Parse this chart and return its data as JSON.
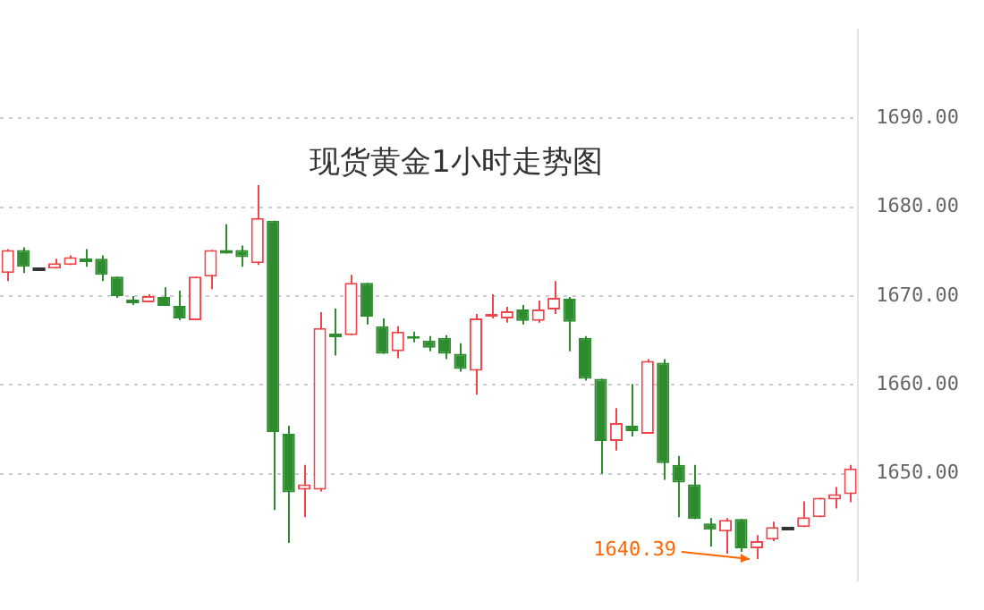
{
  "chart_data": {
    "type": "candlestick",
    "title": "现货黄金1小时走势图",
    "categories": [
      null,
      null,
      null,
      null,
      null,
      null,
      null,
      null,
      null,
      null,
      null,
      null,
      null,
      null,
      null,
      null,
      null,
      null,
      null,
      null,
      null,
      null,
      null,
      null,
      null,
      null,
      null,
      null,
      null,
      null,
      null,
      null,
      null,
      null,
      null,
      null,
      null,
      null,
      null,
      null,
      null,
      null,
      null,
      null,
      null,
      null,
      null,
      null,
      null,
      null,
      null,
      null,
      null,
      null,
      null
    ],
    "ohlc": [
      [
        1672.6,
        1675.3,
        1671.7,
        1675.2
      ],
      [
        1675.2,
        1675.5,
        1672.6,
        1673.3
      ],
      [
        1673.1,
        1673.1,
        1673.1,
        1673.1
      ],
      [
        1673.1,
        1674.2,
        1673.1,
        1673.7
      ],
      [
        1673.5,
        1674.6,
        1673.5,
        1674.4
      ],
      [
        1674.2,
        1675.3,
        1673.3,
        1674.2
      ],
      [
        1674.2,
        1674.6,
        1671.7,
        1672.4
      ],
      [
        1672.2,
        1672.2,
        1669.8,
        1670.0
      ],
      [
        1669.5,
        1670.0,
        1669.0,
        1669.5
      ],
      [
        1669.3,
        1670.2,
        1669.3,
        1670.0
      ],
      [
        1669.9,
        1671.0,
        1668.9,
        1668.9
      ],
      [
        1668.9,
        1670.6,
        1667.3,
        1667.5
      ],
      [
        1667.3,
        1672.2,
        1667.3,
        1672.2
      ],
      [
        1672.2,
        1675.2,
        1670.8,
        1675.2
      ],
      [
        1675.2,
        1678.1,
        1674.8,
        1674.8
      ],
      [
        1675.2,
        1675.7,
        1673.3,
        1674.4
      ],
      [
        1673.7,
        1682.5,
        1673.5,
        1678.8
      ],
      [
        1678.5,
        1678.5,
        1645.9,
        1654.7
      ],
      [
        1654.5,
        1655.4,
        1642.2,
        1647.9
      ],
      [
        1648.2,
        1651.0,
        1645.1,
        1648.8
      ],
      [
        1648.2,
        1668.2,
        1648.0,
        1666.4
      ],
      [
        1665.6,
        1668.6,
        1663.3,
        1665.6
      ],
      [
        1665.6,
        1672.4,
        1665.6,
        1671.5
      ],
      [
        1671.5,
        1671.5,
        1666.8,
        1667.7
      ],
      [
        1666.6,
        1667.5,
        1663.5,
        1663.5
      ],
      [
        1663.8,
        1666.6,
        1663.0,
        1666.0
      ],
      [
        1665.5,
        1666.0,
        1664.8,
        1665.2
      ],
      [
        1665.0,
        1665.5,
        1663.8,
        1664.2
      ],
      [
        1665.3,
        1665.6,
        1662.9,
        1663.5
      ],
      [
        1663.5,
        1664.7,
        1661.5,
        1661.8
      ],
      [
        1661.6,
        1668.0,
        1658.9,
        1667.5
      ],
      [
        1667.7,
        1670.2,
        1667.5,
        1668.0
      ],
      [
        1667.5,
        1668.8,
        1667.0,
        1668.3
      ],
      [
        1668.5,
        1669.0,
        1666.8,
        1667.2
      ],
      [
        1667.2,
        1669.5,
        1667.0,
        1668.5
      ],
      [
        1668.5,
        1671.7,
        1668.0,
        1669.8
      ],
      [
        1669.7,
        1669.9,
        1663.8,
        1667.1
      ],
      [
        1665.3,
        1665.5,
        1660.5,
        1660.7
      ],
      [
        1660.7,
        1660.7,
        1650.0,
        1653.7
      ],
      [
        1653.7,
        1657.4,
        1652.6,
        1655.7
      ],
      [
        1655.4,
        1660.1,
        1654.2,
        1654.8
      ],
      [
        1654.5,
        1662.9,
        1654.5,
        1662.7
      ],
      [
        1662.5,
        1662.9,
        1649.3,
        1651.2
      ],
      [
        1651.0,
        1652.0,
        1645.1,
        1649.0
      ],
      [
        1648.8,
        1651.0,
        1644.9,
        1644.9
      ],
      [
        1644.4,
        1645.0,
        1641.8,
        1643.7
      ],
      [
        1643.5,
        1645.0,
        1641.0,
        1644.8
      ],
      [
        1644.9,
        1644.9,
        1641.2,
        1641.6
      ],
      [
        1641.6,
        1643.1,
        1640.39,
        1642.4
      ],
      [
        1642.6,
        1644.6,
        1642.4,
        1644.0
      ],
      [
        1644.0,
        1644.0,
        1644.0,
        1644.0
      ],
      [
        1644.0,
        1646.9,
        1644.0,
        1645.1
      ],
      [
        1645.1,
        1647.3,
        1645.1,
        1647.3
      ],
      [
        1647.1,
        1648.5,
        1646.1,
        1647.7
      ],
      [
        1647.7,
        1651.0,
        1646.8,
        1650.6
      ]
    ],
    "colors": [
      "#f0454a",
      "#2e8b2e",
      "#333333",
      "#f0454a",
      "#f0454a",
      "#2e8b2e",
      "#2e8b2e",
      "#2e8b2e",
      "#2e8b2e",
      "#f0454a",
      "#2e8b2e",
      "#2e8b2e",
      "#f0454a",
      "#f0454a",
      "#2e8b2e",
      "#2e8b2e",
      "#f0454a",
      "#2e8b2e",
      "#2e8b2e",
      "#f0454a",
      "#f0454a",
      "#2e8b2e",
      "#f0454a",
      "#2e8b2e",
      "#2e8b2e",
      "#f0454a",
      "#2e8b2e",
      "#2e8b2e",
      "#2e8b2e",
      "#2e8b2e",
      "#f0454a",
      "#f0454a",
      "#f0454a",
      "#2e8b2e",
      "#f0454a",
      "#f0454a",
      "#2e8b2e",
      "#2e8b2e",
      "#2e8b2e",
      "#f0454a",
      "#2e8b2e",
      "#f0454a",
      "#2e8b2e",
      "#2e8b2e",
      "#2e8b2e",
      "#2e8b2e",
      "#f0454a",
      "#2e8b2e",
      "#f0454a",
      "#f0454a",
      "#333333",
      "#f0454a",
      "#f0454a",
      "#f0454a",
      "#f0454a"
    ],
    "ylim": [
      1638,
      1700
    ],
    "yticks": [
      {
        "value": 1650,
        "label": "1650.00"
      },
      {
        "value": 1660,
        "label": "1660.00"
      },
      {
        "value": 1670,
        "label": "1670.00"
      },
      {
        "value": 1680,
        "label": "1680.00"
      },
      {
        "value": 1690,
        "label": "1690.00"
      }
    ],
    "grid": "y",
    "tick_labels": "y",
    "legend": false,
    "annotations": [
      "1640.39"
    ]
  }
}
